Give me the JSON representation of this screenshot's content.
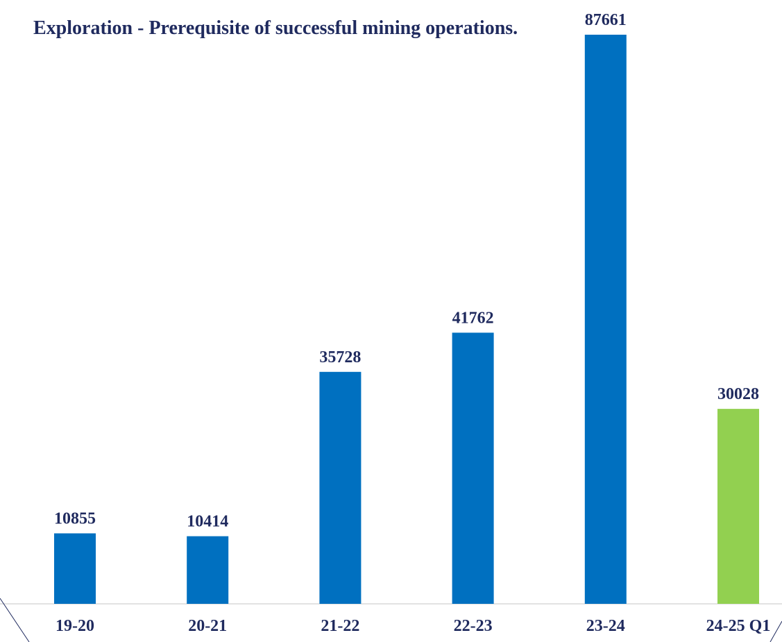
{
  "chart_data": {
    "type": "bar",
    "title": "Exploration - Prerequisite of successful mining operations.",
    "categories": [
      "19-20",
      "20-21",
      "21-22",
      "22-23",
      "23-24",
      "24-25 Q1"
    ],
    "values": [
      10855,
      10414,
      35728,
      41762,
      87661,
      30028
    ],
    "colors": [
      "#0070c0",
      "#0070c0",
      "#0070c0",
      "#0070c0",
      "#0070c0",
      "#92d050"
    ]
  }
}
